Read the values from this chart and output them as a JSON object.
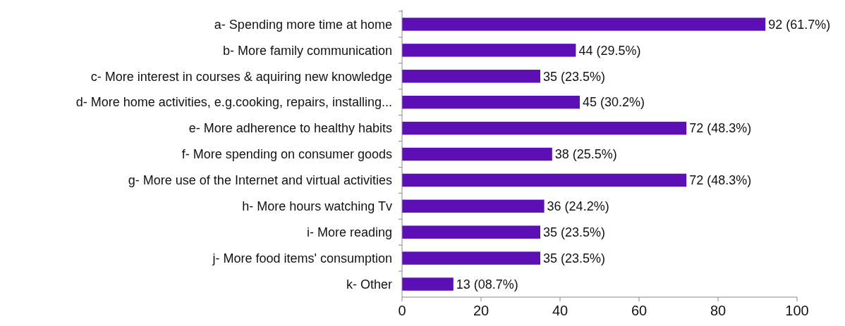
{
  "chart_data": {
    "type": "bar",
    "orientation": "horizontal",
    "categories": [
      "a- Spending more time at home",
      "b- More family communication",
      "c- More interest in courses & aquiring new knowledge",
      "d- More home activities, e.g.cooking, repairs, installing...",
      "e- More adherence to healthy habits",
      "f- More spending on consumer goods",
      "g- More use of the Internet and virtual activities",
      "h- More hours watching Tv",
      "i- More reading",
      "j- More food items' consumption",
      "k- Other"
    ],
    "values": [
      92,
      44,
      35,
      45,
      72,
      38,
      72,
      36,
      35,
      35,
      13
    ],
    "value_labels": [
      "92 (61.7%)",
      "44 (29.5%)",
      "35 (23.5%)",
      "45 (30.2%)",
      "72 (48.3%)",
      "38 (25.5%)",
      "72 (48.3%)",
      "36 (24.2%)",
      "35 (23.5%)",
      "35 (23.5%)",
      "13 (08.7%)"
    ],
    "color": "#5b0fb5",
    "xlim": [
      0,
      100
    ],
    "xticks": [
      0,
      20,
      40,
      60,
      80,
      100
    ],
    "grid": false
  }
}
